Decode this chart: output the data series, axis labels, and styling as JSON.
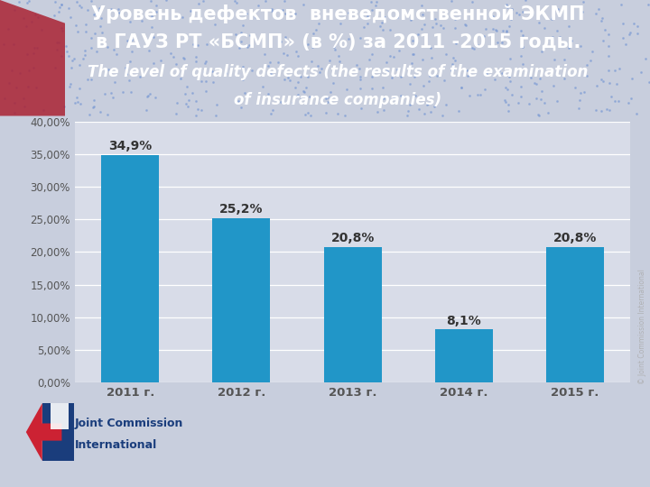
{
  "categories": [
    "2011 г.",
    "2012 г.",
    "2013 г.",
    "2014 г.",
    "2015 г."
  ],
  "values": [
    34.9,
    25.2,
    20.8,
    8.1,
    20.8
  ],
  "bar_labels": [
    "34,9%",
    "25,2%",
    "20,8%",
    "8,1%",
    "20,8%"
  ],
  "bar_color": "#2196C8",
  "ylim": [
    0,
    40
  ],
  "yticks": [
    0,
    5,
    10,
    15,
    20,
    25,
    30,
    35,
    40
  ],
  "ytick_labels": [
    "0,00%",
    "5,00%",
    "10,00%",
    "15,00%",
    "20,00%",
    "25,00%",
    "30,00%",
    "35,00%",
    "40,00%"
  ],
  "title_line1": "Уровень дефектов  вневедомственной ЭКМП",
  "title_line2": "в ГАУЗ РТ «БСМП» (в %) за 2011 -2015 годы.",
  "title_line3": "The level of quality defects (the results of the examination",
  "title_line4": "of insurance companies)",
  "title_bg_color": "#5a6eaa",
  "chart_bg_color": "#d8dce8",
  "figure_bg_color": "#c8cedd",
  "grid_color": "#ffffff",
  "title_text_color": "#ffffff",
  "bar_label_color": "#333333",
  "tick_label_color": "#555555",
  "bar_label_fontsize": 10,
  "title_fontsize1": 15,
  "title_fontsize2": 12,
  "watermark_text": "© Joint Commission International"
}
